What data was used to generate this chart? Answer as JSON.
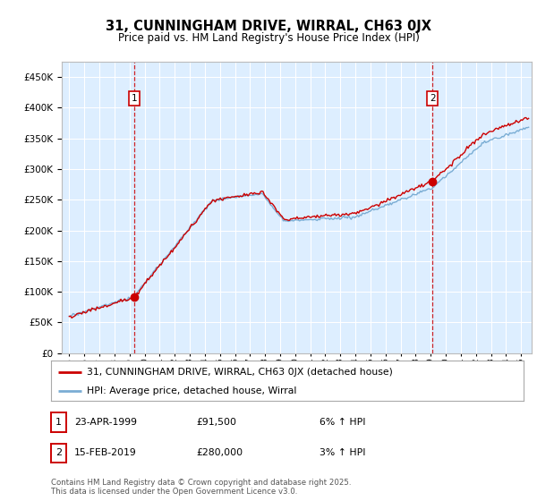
{
  "title": "31, CUNNINGHAM DRIVE, WIRRAL, CH63 0JX",
  "subtitle": "Price paid vs. HM Land Registry's House Price Index (HPI)",
  "ylim": [
    0,
    475000
  ],
  "yticks": [
    0,
    50000,
    100000,
    150000,
    200000,
    250000,
    300000,
    350000,
    400000,
    450000
  ],
  "sale1_date_x": 1999.31,
  "sale1_price": 91500,
  "sale2_date_x": 2019.12,
  "sale2_price": 280000,
  "legend_line1": "31, CUNNINGHAM DRIVE, WIRRAL, CH63 0JX (detached house)",
  "legend_line2": "HPI: Average price, detached house, Wirral",
  "annot1_date": "23-APR-1999",
  "annot1_price": "£91,500",
  "annot1_hpi": "6% ↑ HPI",
  "annot2_date": "15-FEB-2019",
  "annot2_price": "£280,000",
  "annot2_hpi": "3% ↑ HPI",
  "footer": "Contains HM Land Registry data © Crown copyright and database right 2025.\nThis data is licensed under the Open Government Licence v3.0.",
  "line_color_red": "#cc0000",
  "line_color_blue": "#7aadd4",
  "bg_color": "#ddeeff",
  "grid_color": "#ffffff",
  "xlim_start": 1994.5,
  "xlim_end": 2025.7
}
